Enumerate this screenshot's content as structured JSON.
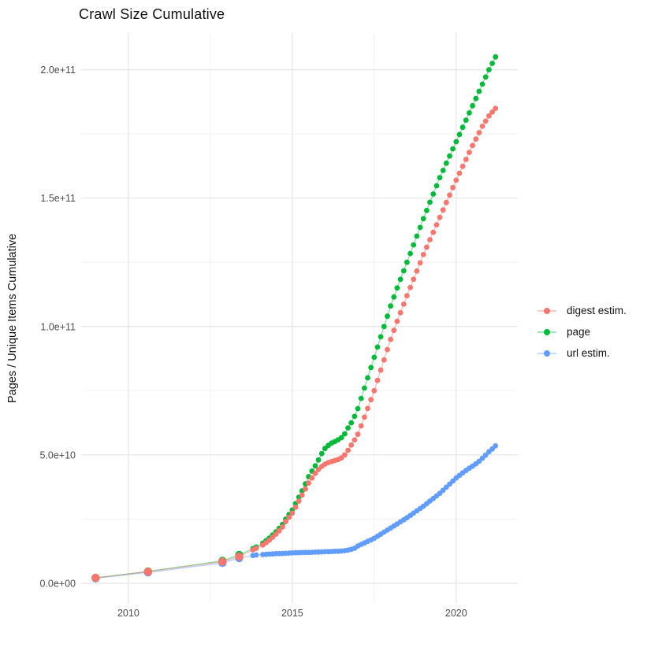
{
  "chart_data": {
    "type": "scatter",
    "title": "Crawl Size Cumulative",
    "xlabel": "",
    "ylabel": "Pages / Unique Items Cumulative",
    "value_unit": "1e9",
    "xlim": [
      2008.56,
      2021.88
    ],
    "ylim": [
      -7.7,
      214.3
    ],
    "grid": "on",
    "legend_position": "right-center",
    "x_axis": {
      "major_ticks": [
        2010,
        2015,
        2020
      ],
      "major_tick_labels": [
        "2010",
        "2015",
        "2020"
      ],
      "minor_ticks": [
        2012.5,
        2017.5
      ]
    },
    "y_axis": {
      "major_ticks": [
        0,
        50,
        100,
        150,
        200
      ],
      "major_tick_labels": [
        "0.0e+00",
        "5.0e+10",
        "1.0e+11",
        "1.5e+11",
        "2.0e+11"
      ],
      "minor_ticks": [
        25,
        75,
        125,
        175
      ]
    },
    "style": {
      "grid_major_color": "#e8e8e8",
      "grid_minor_color": "#f2f2f2",
      "tick_label_color": "#4d4d4d",
      "title_color": "#111111",
      "background": "#ffffff",
      "point_radius": 3.4,
      "early_point_radius": 5.2,
      "early_cutoff_year": 2013.5,
      "line_opacity": 0.5,
      "line_width": 1.2
    },
    "series": [
      {
        "name": "digest estim.",
        "color": "#F8766D",
        "points": [
          [
            2009.0,
            2.1
          ],
          [
            2010.6,
            4.5
          ],
          [
            2012.87,
            8.4
          ],
          [
            2013.38,
            10.4
          ],
          [
            2013.8,
            13.0
          ],
          [
            2013.9,
            13.6
          ],
          [
            2014.1,
            14.9
          ],
          [
            2014.2,
            15.8
          ],
          [
            2014.3,
            16.8
          ],
          [
            2014.4,
            17.9
          ],
          [
            2014.5,
            19.1
          ],
          [
            2014.6,
            20.4
          ],
          [
            2014.7,
            21.9
          ],
          [
            2014.8,
            24.0
          ],
          [
            2014.9,
            25.7
          ],
          [
            2015.0,
            27.3
          ],
          [
            2015.1,
            29.6
          ],
          [
            2015.2,
            32.0
          ],
          [
            2015.3,
            34.3
          ],
          [
            2015.4,
            36.7
          ],
          [
            2015.5,
            39.0
          ],
          [
            2015.6,
            41.0
          ],
          [
            2015.7,
            42.8
          ],
          [
            2015.8,
            44.3
          ],
          [
            2015.9,
            45.5
          ],
          [
            2016.0,
            46.4
          ],
          [
            2016.1,
            47.0
          ],
          [
            2016.2,
            47.4
          ],
          [
            2016.3,
            47.8
          ],
          [
            2016.4,
            48.2
          ],
          [
            2016.5,
            48.8
          ],
          [
            2016.6,
            50.0
          ],
          [
            2016.7,
            51.8
          ],
          [
            2016.8,
            53.8
          ],
          [
            2016.9,
            55.8
          ],
          [
            2017.0,
            58.0
          ],
          [
            2017.1,
            61.3
          ],
          [
            2017.2,
            64.7
          ],
          [
            2017.3,
            68.1
          ],
          [
            2017.4,
            71.5
          ],
          [
            2017.5,
            75.0
          ],
          [
            2017.6,
            79.0
          ],
          [
            2017.7,
            83.0
          ],
          [
            2017.8,
            87.0
          ],
          [
            2017.9,
            91.0
          ],
          [
            2018.0,
            95.0
          ],
          [
            2018.1,
            98.5
          ],
          [
            2018.2,
            102.0
          ],
          [
            2018.3,
            105.4
          ],
          [
            2018.4,
            108.7
          ],
          [
            2018.5,
            112.0
          ],
          [
            2018.6,
            115.2
          ],
          [
            2018.7,
            118.4
          ],
          [
            2018.8,
            121.6
          ],
          [
            2018.9,
            124.8
          ],
          [
            2019.0,
            128.0
          ],
          [
            2019.1,
            130.9
          ],
          [
            2019.2,
            133.8
          ],
          [
            2019.3,
            136.7
          ],
          [
            2019.4,
            139.6
          ],
          [
            2019.5,
            142.5
          ],
          [
            2019.6,
            145.4
          ],
          [
            2019.7,
            148.3
          ],
          [
            2019.8,
            151.2
          ],
          [
            2019.9,
            154.1
          ],
          [
            2020.0,
            157.0
          ],
          [
            2020.1,
            159.7
          ],
          [
            2020.2,
            162.4
          ],
          [
            2020.3,
            165.1
          ],
          [
            2020.4,
            167.8
          ],
          [
            2020.5,
            170.5
          ],
          [
            2020.6,
            173.0
          ],
          [
            2020.7,
            175.5
          ],
          [
            2020.8,
            178.0
          ],
          [
            2020.9,
            180.0
          ],
          [
            2021.0,
            182.0
          ],
          [
            2021.1,
            183.5
          ],
          [
            2021.2,
            185.0
          ]
        ]
      },
      {
        "name": "page",
        "color": "#00BA38",
        "points": [
          [
            2009.0,
            2.1
          ],
          [
            2010.6,
            4.6
          ],
          [
            2012.87,
            8.7
          ],
          [
            2013.38,
            11.0
          ],
          [
            2013.8,
            13.5
          ],
          [
            2013.9,
            14.1
          ],
          [
            2014.1,
            15.6
          ],
          [
            2014.2,
            16.6
          ],
          [
            2014.3,
            17.6
          ],
          [
            2014.4,
            18.8
          ],
          [
            2014.5,
            20.0
          ],
          [
            2014.6,
            21.4
          ],
          [
            2014.7,
            22.9
          ],
          [
            2014.8,
            25.0
          ],
          [
            2014.9,
            26.8
          ],
          [
            2015.0,
            28.5
          ],
          [
            2015.1,
            31.0
          ],
          [
            2015.2,
            33.5
          ],
          [
            2015.3,
            36.0
          ],
          [
            2015.4,
            38.7
          ],
          [
            2015.5,
            41.5
          ],
          [
            2015.6,
            43.7
          ],
          [
            2015.7,
            45.7
          ],
          [
            2015.8,
            48.0
          ],
          [
            2015.9,
            50.5
          ],
          [
            2016.0,
            52.5
          ],
          [
            2016.1,
            53.7
          ],
          [
            2016.2,
            54.6
          ],
          [
            2016.3,
            55.2
          ],
          [
            2016.4,
            55.9
          ],
          [
            2016.5,
            56.7
          ],
          [
            2016.6,
            58.2
          ],
          [
            2016.7,
            60.5
          ],
          [
            2016.8,
            62.5
          ],
          [
            2016.9,
            65.0
          ],
          [
            2017.0,
            68.0
          ],
          [
            2017.1,
            72.0
          ],
          [
            2017.2,
            76.0
          ],
          [
            2017.3,
            80.0
          ],
          [
            2017.4,
            84.0
          ],
          [
            2017.5,
            88.0
          ],
          [
            2017.6,
            92.0
          ],
          [
            2017.7,
            96.0
          ],
          [
            2017.8,
            100.0
          ],
          [
            2017.9,
            104.0
          ],
          [
            2018.0,
            108.0
          ],
          [
            2018.1,
            111.5
          ],
          [
            2018.2,
            115.0
          ],
          [
            2018.3,
            118.4
          ],
          [
            2018.4,
            121.7
          ],
          [
            2018.5,
            125.0
          ],
          [
            2018.6,
            128.4
          ],
          [
            2018.7,
            131.8
          ],
          [
            2018.8,
            135.2
          ],
          [
            2018.9,
            138.6
          ],
          [
            2019.0,
            142.0
          ],
          [
            2019.1,
            145.2
          ],
          [
            2019.2,
            148.4
          ],
          [
            2019.3,
            151.6
          ],
          [
            2019.4,
            154.8
          ],
          [
            2019.5,
            158.0
          ],
          [
            2019.6,
            160.8
          ],
          [
            2019.7,
            163.6
          ],
          [
            2019.8,
            166.4
          ],
          [
            2019.9,
            169.2
          ],
          [
            2020.0,
            172.0
          ],
          [
            2020.1,
            174.8
          ],
          [
            2020.2,
            177.6
          ],
          [
            2020.3,
            180.4
          ],
          [
            2020.4,
            183.2
          ],
          [
            2020.5,
            186.0
          ],
          [
            2020.6,
            188.8
          ],
          [
            2020.7,
            191.6
          ],
          [
            2020.8,
            194.4
          ],
          [
            2020.9,
            197.2
          ],
          [
            2021.0,
            200.0
          ],
          [
            2021.1,
            202.5
          ],
          [
            2021.2,
            205.0
          ]
        ]
      },
      {
        "name": "url estim.",
        "color": "#619CFF",
        "points": [
          [
            2009.0,
            1.9
          ],
          [
            2010.6,
            4.2
          ],
          [
            2012.87,
            7.9
          ],
          [
            2013.38,
            9.8
          ],
          [
            2013.8,
            10.8
          ],
          [
            2013.9,
            11.0
          ],
          [
            2014.1,
            11.15
          ],
          [
            2014.2,
            11.25
          ],
          [
            2014.3,
            11.35
          ],
          [
            2014.4,
            11.4
          ],
          [
            2014.5,
            11.5
          ],
          [
            2014.6,
            11.55
          ],
          [
            2014.7,
            11.6
          ],
          [
            2014.8,
            11.65
          ],
          [
            2014.9,
            11.75
          ],
          [
            2015.0,
            11.8
          ],
          [
            2015.1,
            11.85
          ],
          [
            2015.2,
            11.9
          ],
          [
            2015.3,
            11.95
          ],
          [
            2015.4,
            12.0
          ],
          [
            2015.5,
            12.0
          ],
          [
            2015.6,
            12.05
          ],
          [
            2015.7,
            12.1
          ],
          [
            2015.8,
            12.15
          ],
          [
            2015.9,
            12.2
          ],
          [
            2016.0,
            12.25
          ],
          [
            2016.1,
            12.3
          ],
          [
            2016.2,
            12.35
          ],
          [
            2016.3,
            12.4
          ],
          [
            2016.4,
            12.45
          ],
          [
            2016.5,
            12.55
          ],
          [
            2016.6,
            12.7
          ],
          [
            2016.7,
            12.9
          ],
          [
            2016.8,
            13.2
          ],
          [
            2016.9,
            13.6
          ],
          [
            2017.0,
            14.5
          ],
          [
            2017.1,
            15.1
          ],
          [
            2017.2,
            15.7
          ],
          [
            2017.3,
            16.3
          ],
          [
            2017.4,
            16.9
          ],
          [
            2017.5,
            17.5
          ],
          [
            2017.6,
            18.3
          ],
          [
            2017.7,
            19.1
          ],
          [
            2017.8,
            19.9
          ],
          [
            2017.9,
            20.7
          ],
          [
            2018.0,
            21.5
          ],
          [
            2018.1,
            22.3
          ],
          [
            2018.2,
            23.1
          ],
          [
            2018.3,
            23.9
          ],
          [
            2018.4,
            24.7
          ],
          [
            2018.5,
            25.5
          ],
          [
            2018.6,
            26.4
          ],
          [
            2018.7,
            27.3
          ],
          [
            2018.8,
            28.2
          ],
          [
            2018.9,
            29.1
          ],
          [
            2019.0,
            30.0
          ],
          [
            2019.1,
            31.0
          ],
          [
            2019.2,
            32.0
          ],
          [
            2019.3,
            33.0
          ],
          [
            2019.4,
            34.0
          ],
          [
            2019.5,
            35.0
          ],
          [
            2019.6,
            36.2
          ],
          [
            2019.7,
            37.4
          ],
          [
            2019.8,
            38.6
          ],
          [
            2019.9,
            39.8
          ],
          [
            2020.0,
            41.0
          ],
          [
            2020.1,
            42.0
          ],
          [
            2020.2,
            43.0
          ],
          [
            2020.3,
            43.9
          ],
          [
            2020.4,
            44.8
          ],
          [
            2020.5,
            45.6
          ],
          [
            2020.6,
            46.5
          ],
          [
            2020.7,
            47.5
          ],
          [
            2020.8,
            48.7
          ],
          [
            2020.9,
            49.9
          ],
          [
            2021.0,
            51.2
          ],
          [
            2021.1,
            52.3
          ],
          [
            2021.2,
            53.5
          ]
        ]
      }
    ]
  }
}
